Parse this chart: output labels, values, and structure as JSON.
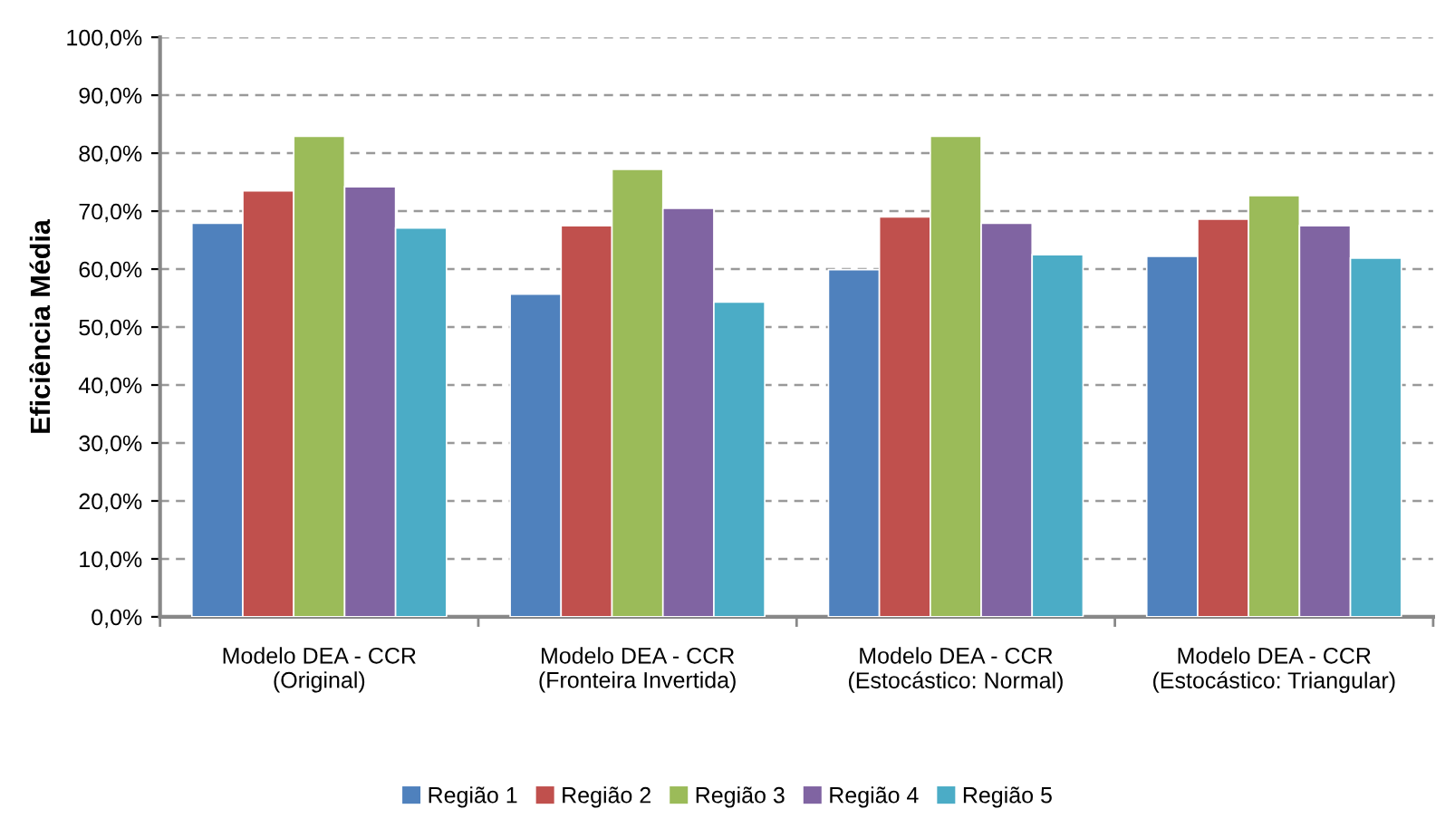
{
  "chart_data": {
    "type": "bar",
    "ylabel": "Eficiência Média",
    "categories": [
      "Modelo DEA - CCR\n(Original)",
      "Modelo DEA - CCR\n(Fronteira Invertida)",
      "Modelo DEA - CCR\n(Estocástico: Normal)",
      "Modelo DEA - CCR\n(Estocástico: Triangular)"
    ],
    "series": [
      {
        "name": "Região 1",
        "color": "#4f81bd",
        "values": [
          67.9,
          55.7,
          59.9,
          62.2
        ]
      },
      {
        "name": "Região 2",
        "color": "#c0504d",
        "values": [
          73.5,
          67.5,
          69.0,
          68.6
        ]
      },
      {
        "name": "Região 3",
        "color": "#9bbb59",
        "values": [
          82.9,
          77.2,
          82.9,
          72.7
        ]
      },
      {
        "name": "Região 4",
        "color": "#8064a2",
        "values": [
          74.2,
          70.5,
          67.9,
          67.5
        ]
      },
      {
        "name": "Região 5",
        "color": "#4bacc6",
        "values": [
          67.1,
          54.3,
          62.5,
          61.9
        ]
      }
    ],
    "ylim": [
      0,
      100
    ],
    "yticks": [
      {
        "value": 0,
        "label": "0,0%"
      },
      {
        "value": 10,
        "label": "10,0%"
      },
      {
        "value": 20,
        "label": "20,0%"
      },
      {
        "value": 30,
        "label": "30,0%"
      },
      {
        "value": 40,
        "label": "40,0%"
      },
      {
        "value": 50,
        "label": "50,0%"
      },
      {
        "value": 60,
        "label": "60,0%"
      },
      {
        "value": 70,
        "label": "70,0%"
      },
      {
        "value": 80,
        "label": "80,0%"
      },
      {
        "value": 90,
        "label": "90,0%"
      },
      {
        "value": 100,
        "label": "100,0%"
      }
    ],
    "grid": "y",
    "legend": "bottom"
  }
}
